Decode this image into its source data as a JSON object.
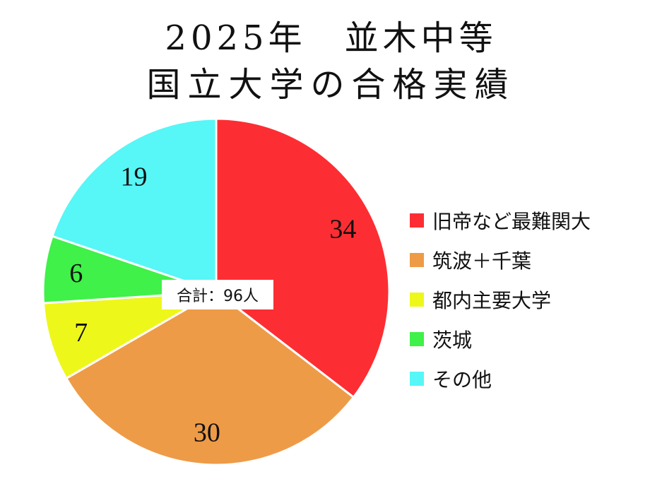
{
  "chart_data": {
    "type": "pie",
    "title_line1": "2025年　並木中等",
    "title_line2": "国立大学の合格実績",
    "total_label": "合計：96人",
    "slices": [
      {
        "label": "旧帝など最難関大",
        "value": 34,
        "value_label": "34",
        "color": "#fc2e33"
      },
      {
        "label": "筑波＋千葉",
        "value": 30,
        "value_label": "30",
        "color": "#ee9b47"
      },
      {
        "label": "都内主要大学",
        "value": 7,
        "value_label": "7",
        "color": "#eef71a"
      },
      {
        "label": "茨城",
        "value": 6,
        "value_label": "6",
        "color": "#3ff148"
      },
      {
        "label": "その他",
        "value": 19,
        "value_label": "19",
        "color": "#57f6f7"
      }
    ],
    "legend_position": "right"
  }
}
